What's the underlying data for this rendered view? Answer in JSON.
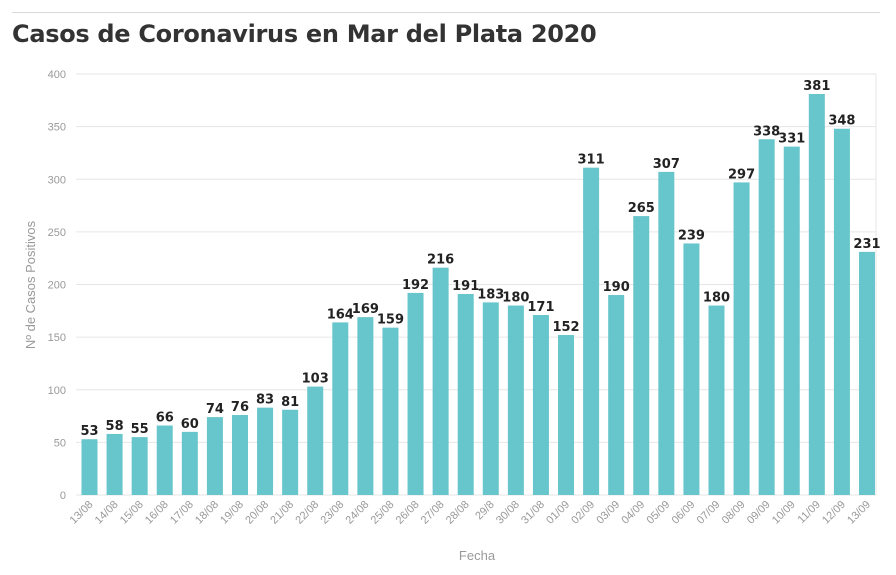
{
  "title": "Casos de Coronavirus en Mar del Plata 2020",
  "colors": {
    "bar": "#67c5cc",
    "grid": "#e6e6e6",
    "title": "#333333",
    "axis_text": "#999999",
    "value_text": "#222222"
  },
  "chart_data": {
    "type": "bar",
    "title": "Casos de Coronavirus en Mar del Plata 2020",
    "xlabel": "Fecha",
    "ylabel": "Nº de Casos Positivos",
    "ylim": [
      0,
      400
    ],
    "yticks": [
      0,
      50,
      100,
      150,
      200,
      250,
      300,
      350,
      400
    ],
    "grid": true,
    "categories": [
      "13/08",
      "14/08",
      "15/08",
      "16/08",
      "17/08",
      "18/08",
      "19/08",
      "20/08",
      "21/08",
      "22/08",
      "23/08",
      "24/08",
      "25/08",
      "26/08",
      "27/08",
      "28/08",
      "29/8",
      "30/08",
      "31/08",
      "01/09",
      "02/09",
      "03/09",
      "04/09",
      "05/09",
      "06/09",
      "07/09",
      "08/09",
      "09/09",
      "10/09",
      "11/09",
      "12/09",
      "13/09"
    ],
    "values": [
      53,
      58,
      55,
      66,
      60,
      74,
      76,
      83,
      81,
      103,
      164,
      169,
      159,
      192,
      216,
      191,
      183,
      180,
      171,
      152,
      311,
      190,
      265,
      307,
      239,
      180,
      297,
      338,
      331,
      381,
      348,
      231
    ]
  }
}
